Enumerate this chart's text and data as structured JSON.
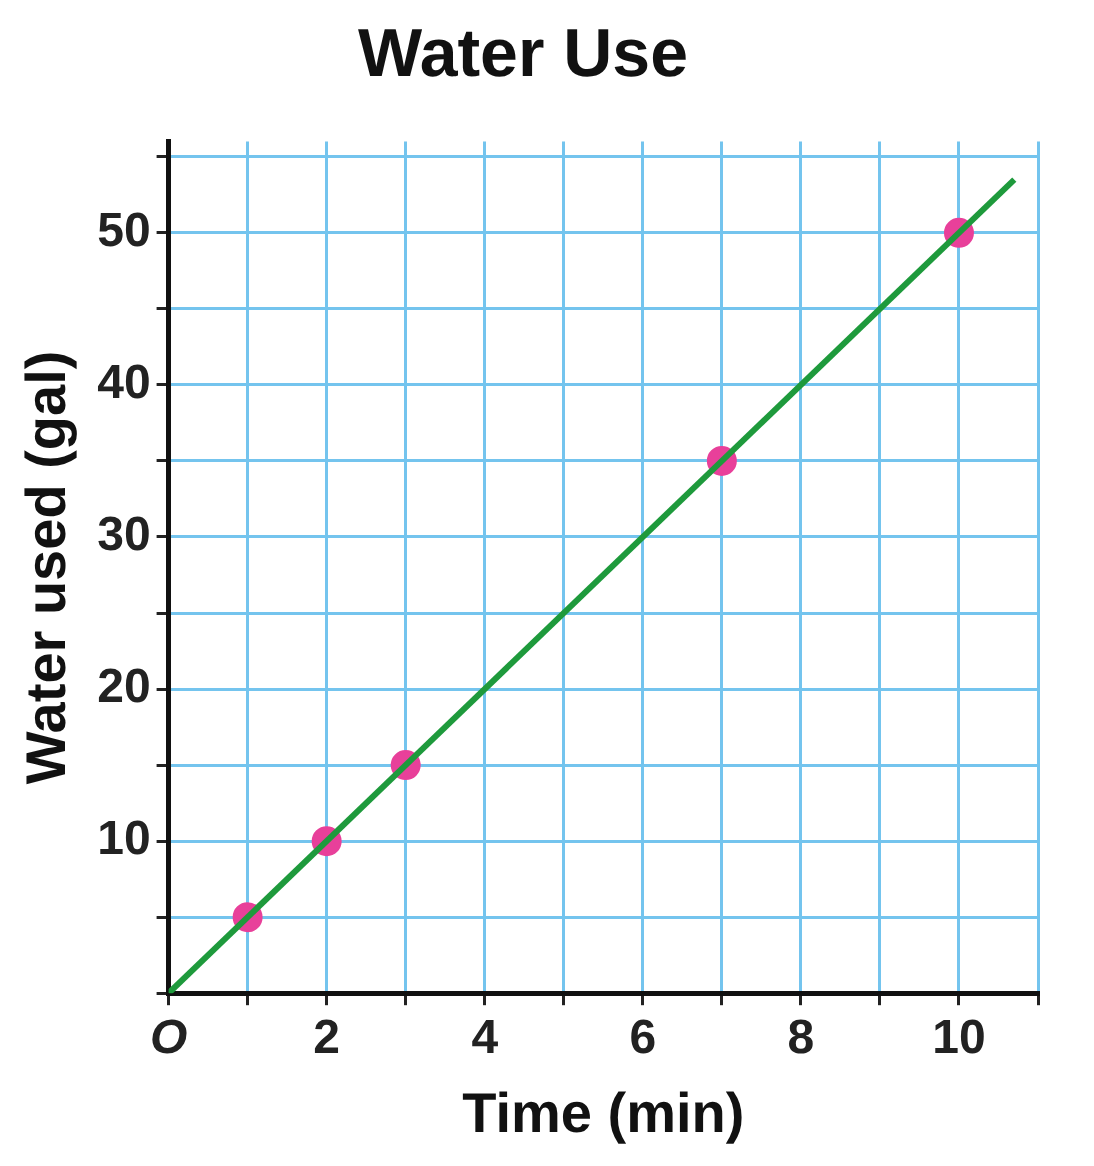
{
  "chart_data": {
    "type": "scatter",
    "title": "Water Use",
    "xlabel": "Time (min)",
    "ylabel": "Water used (gal)",
    "series": [
      {
        "type": "line",
        "color": "#1e9a3c",
        "x": [
          0,
          10.7
        ],
        "values": [
          0,
          53.5
        ],
        "marker": "none"
      },
      {
        "type": "scatter",
        "color": "#e8409a",
        "x": [
          1,
          2,
          3,
          7,
          10
        ],
        "values": [
          5,
          10,
          15,
          35,
          50
        ],
        "marker": "circle"
      }
    ],
    "xlim": [
      0,
      11
    ],
    "ylim": [
      0,
      56
    ],
    "xticks": [
      {
        "value": 0,
        "label": "O"
      },
      {
        "value": 1,
        "label": null
      },
      2,
      {
        "value": 3,
        "label": null
      },
      4,
      {
        "value": 5,
        "label": null
      },
      6,
      {
        "value": 7,
        "label": null
      },
      8,
      {
        "value": 9,
        "label": null
      },
      10,
      {
        "value": 11,
        "label": null
      }
    ],
    "yticks": [
      {
        "value": 0,
        "label": null
      },
      {
        "value": 5,
        "label": null
      },
      10,
      {
        "value": 15,
        "label": null
      },
      20,
      {
        "value": 25,
        "label": null
      },
      30,
      {
        "value": 35,
        "label": null
      },
      40,
      {
        "value": 45,
        "label": null
      },
      50,
      {
        "value": 55,
        "label": null
      }
    ],
    "grid": true,
    "legend": false,
    "line_style": "solid"
  }
}
